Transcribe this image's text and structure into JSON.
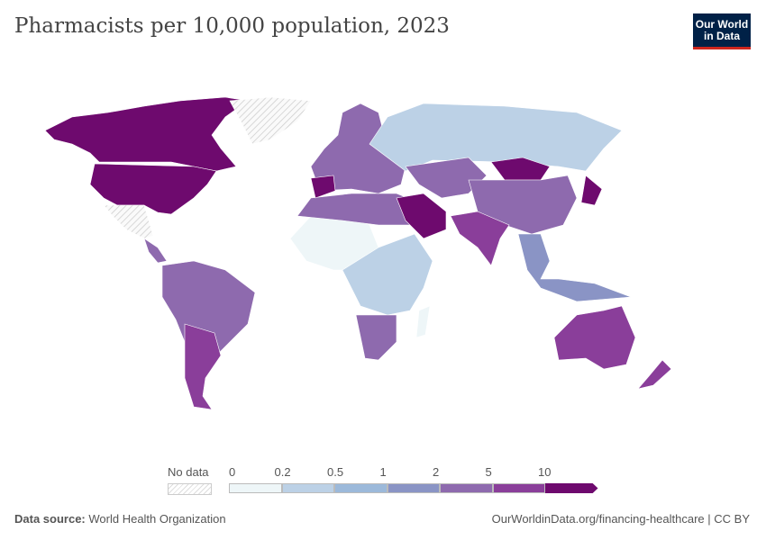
{
  "title": "Pharmacists per 10,000 population, 2023",
  "logo": {
    "line1": "Our World",
    "line2": "in Data"
  },
  "legend": {
    "no_data_label": "No data",
    "ticks": [
      "0",
      "0.2",
      "0.5",
      "1",
      "2",
      "5",
      "10"
    ],
    "bins": [
      {
        "range": "0-0.2",
        "color": "#eef6f8"
      },
      {
        "range": "0.2-0.5",
        "color": "#bcd1e6"
      },
      {
        "range": "0.5-1",
        "color": "#9cb9da"
      },
      {
        "range": "1-2",
        "color": "#8a94c5"
      },
      {
        "range": "2-5",
        "color": "#8e6aae"
      },
      {
        "range": "5-10",
        "color": "#8a3e9a"
      },
      {
        "range": ">10",
        "color": "#6e0a6e"
      }
    ]
  },
  "footer": {
    "source_label": "Data source:",
    "source": "World Health Organization",
    "link": "OurWorldinData.org/financing-healthcare | CC BY"
  }
}
